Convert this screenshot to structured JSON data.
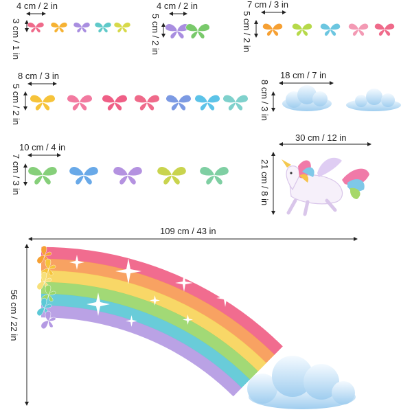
{
  "groups": [
    {
      "width_label": "4 cm / 2 in",
      "height_label": "3 cm / 1 in",
      "butterflies": [
        "#ef6a8a",
        "#f6b233",
        "#a98ee0",
        "#5fc9c9",
        "#d7d94a"
      ]
    },
    {
      "width_label": "4 cm / 2 in",
      "height_label": "5 cm / 2 in",
      "butterflies": [
        "#a98ee0",
        "#79c96b"
      ]
    },
    {
      "width_label": "7 cm / 3 in",
      "height_label": "5 cm / 2 in",
      "butterflies": [
        "#f6a033",
        "#b6d94a",
        "#6cc6e0",
        "#f39ab4",
        "#ef6a8a"
      ]
    },
    {
      "width_label": "8 cm / 3 in",
      "height_label": "5 cm / 2 in",
      "butterflies": [
        "#f6c33a",
        "#f27aa0",
        "#ef5f86",
        "#ef6a8a",
        "#7c9ae3",
        "#5cc3e8",
        "#7fd1cc"
      ]
    },
    {
      "width_label": "10 cm / 4 in",
      "height_label": "7 cm / 3 in",
      "butterflies": [
        "#86cf7a",
        "#69a9e8",
        "#b492e0",
        "#c9d44e",
        "#7fcfa3"
      ]
    }
  ],
  "clouds": {
    "width_label": "18 cm / 7 in",
    "height_label": "8 cm / 3 in"
  },
  "unicorn": {
    "width_label": "30 cm / 12 in",
    "height_label": "21 cm / 8 in"
  },
  "rainbow": {
    "width_label": "109 cm / 43 in",
    "height_label": "56 cm / 22 in",
    "bands": [
      "#f05f86",
      "#f79a55",
      "#f7d45a",
      "#9ad66a",
      "#5cc8d6",
      "#b49ae3"
    ]
  }
}
